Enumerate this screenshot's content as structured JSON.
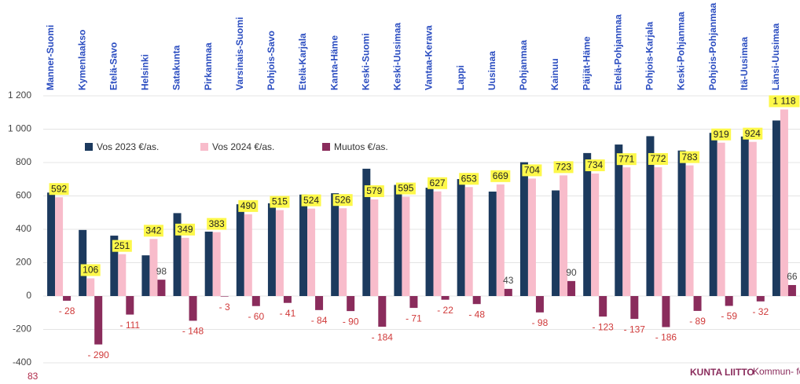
{
  "chart_data": {
    "type": "bar",
    "categories": [
      "Manner-Suomi",
      "Kymenlaakso",
      "Etelä-Savo",
      "Helsinki",
      "Satakunta",
      "Pirkanmaa",
      "Varsinais-Suomi",
      "Pohjois-Savo",
      "Etelä-Karjala",
      "Kanta-Häme",
      "Keski-Suomi",
      "Keski-Uusimaa",
      "Vantaa-Kerava",
      "Lappi",
      "Uusimaa",
      "Pohjanmaa",
      "Kainuu",
      "Päijät-Häme",
      "Etelä-Pohjanmaa",
      "Pohjois-Karjala",
      "Keski-Pohjanmaa",
      "Pohjois-Pohjanmaa",
      "Itä-Uusimaa",
      "Länsi-Uusimaa"
    ],
    "series": [
      {
        "name": "Vos 2023 €/as.",
        "color": "#1c3a5e",
        "values": [
          620,
          396,
          362,
          244,
          497,
          386,
          550,
          556,
          608,
          616,
          763,
          666,
          649,
          701,
          626,
          802,
          633,
          857,
          908,
          958,
          872,
          978,
          956,
          1052
        ]
      },
      {
        "name": "Vos 2024 €/as.",
        "color": "#f8bccb",
        "values": [
          592,
          106,
          251,
          342,
          349,
          383,
          490,
          515,
          524,
          526,
          579,
          595,
          627,
          653,
          669,
          704,
          723,
          734,
          771,
          772,
          783,
          919,
          924,
          1118
        ],
        "value_labels": [
          "592",
          "106",
          "251",
          "342",
          "349",
          "383",
          "490",
          "515",
          "524",
          "526",
          "579",
          "595",
          "627",
          "653",
          "669",
          "704",
          "723",
          "734",
          "771",
          "772",
          "783",
          "919",
          "924",
          "1 118"
        ]
      },
      {
        "name": "Muutos €/as.",
        "color": "#8a2c5c",
        "values": [
          -28,
          -290,
          -111,
          98,
          -148,
          -3,
          -60,
          -41,
          -84,
          -90,
          -184,
          -71,
          -22,
          -48,
          43,
          -98,
          90,
          -123,
          -137,
          -186,
          -89,
          -59,
          -32,
          66
        ],
        "value_labels": [
          "- 28",
          "- 290",
          "- 111",
          "98",
          "- 148",
          "- 3",
          "- 60",
          "- 41",
          "- 84",
          "- 90",
          "- 184",
          "- 71",
          "- 22",
          "- 48",
          "43",
          "- 98",
          "90",
          "- 123",
          "- 137",
          "- 186",
          "- 89",
          "- 59",
          "- 32",
          "66"
        ]
      }
    ],
    "ylim": [
      -400,
      1200
    ],
    "yticks": [
      -400,
      -200,
      0,
      200,
      400,
      600,
      800,
      {
        "value": 1000,
        "label": "1 000"
      },
      {
        "value": 1200,
        "label": "1 200"
      }
    ],
    "grid": true
  },
  "page_number": "83",
  "logo": {
    "name": "KUNTA LIITTO",
    "text": "Kommun- förbundet"
  }
}
